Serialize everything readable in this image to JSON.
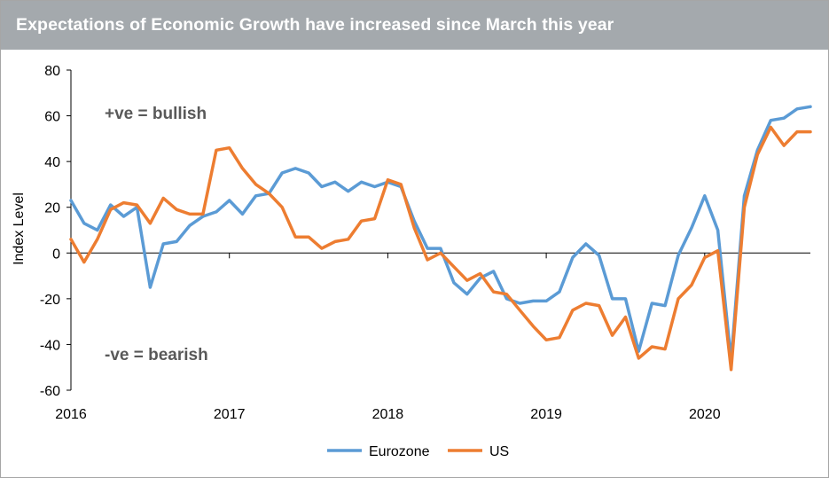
{
  "chart_data": {
    "type": "line",
    "title": "Expectations of Economic Growth have increased since March this year",
    "xlabel": "",
    "ylabel": "Index Level",
    "ylim": [
      -60,
      80
    ],
    "yticks": [
      80,
      60,
      40,
      20,
      0,
      -20,
      -40,
      -60
    ],
    "ytick_labels": [
      "80",
      "60",
      "40",
      "20",
      "0",
      "-20",
      "-40",
      "-60"
    ],
    "xlim": [
      2016,
      2020.667
    ],
    "xticks": [
      2016,
      2017,
      2018,
      2019,
      2020
    ],
    "xtick_labels": [
      "2016",
      "2017",
      "2018",
      "2019",
      "2020"
    ],
    "grid": false,
    "legend_position": "bottom",
    "annotations": [
      "+ve = bullish",
      "-ve = bearish"
    ],
    "x": [
      2016.0,
      2016.083,
      2016.167,
      2016.25,
      2016.333,
      2016.417,
      2016.5,
      2016.583,
      2016.667,
      2016.75,
      2016.833,
      2016.917,
      2017.0,
      2017.083,
      2017.167,
      2017.25,
      2017.333,
      2017.417,
      2017.5,
      2017.583,
      2017.667,
      2017.75,
      2017.833,
      2017.917,
      2018.0,
      2018.083,
      2018.167,
      2018.25,
      2018.333,
      2018.417,
      2018.5,
      2018.583,
      2018.667,
      2018.75,
      2018.833,
      2018.917,
      2019.0,
      2019.083,
      2019.167,
      2019.25,
      2019.333,
      2019.417,
      2019.5,
      2019.583,
      2019.667,
      2019.75,
      2019.833,
      2019.917,
      2020.0,
      2020.083,
      2020.167,
      2020.25,
      2020.333,
      2020.417,
      2020.5,
      2020.583,
      2020.667
    ],
    "series": [
      {
        "name": "Eurozone",
        "color": "#5b9bd5",
        "values": [
          23,
          13,
          10,
          21,
          16,
          20,
          -15,
          4,
          5,
          12,
          16,
          18,
          23,
          17,
          25,
          26,
          35,
          37,
          35,
          29,
          31,
          27,
          31,
          29,
          31,
          29,
          14,
          2,
          2,
          -13,
          -18,
          -11,
          -8,
          -20,
          -22,
          -21,
          -21,
          -17,
          -2,
          4,
          -1,
          -20,
          -20,
          -43,
          -22,
          -23,
          -1,
          11,
          25,
          10,
          -47,
          25,
          45,
          58,
          59,
          63,
          64
        ]
      },
      {
        "name": "US",
        "color": "#ed7d31",
        "values": [
          6,
          -4,
          6,
          19,
          22,
          21,
          13,
          24,
          19,
          17,
          17,
          45,
          46,
          37,
          30,
          26,
          20,
          7,
          7,
          2,
          5,
          6,
          14,
          15,
          32,
          30,
          11,
          -3,
          0,
          -6,
          -12,
          -9,
          -17,
          -18,
          -25,
          -32,
          -38,
          -37,
          -25,
          -22,
          -23,
          -36,
          -28,
          -46,
          -41,
          -42,
          -20,
          -14,
          -2,
          1,
          -51,
          20,
          43,
          55,
          47,
          53,
          53
        ]
      }
    ]
  }
}
